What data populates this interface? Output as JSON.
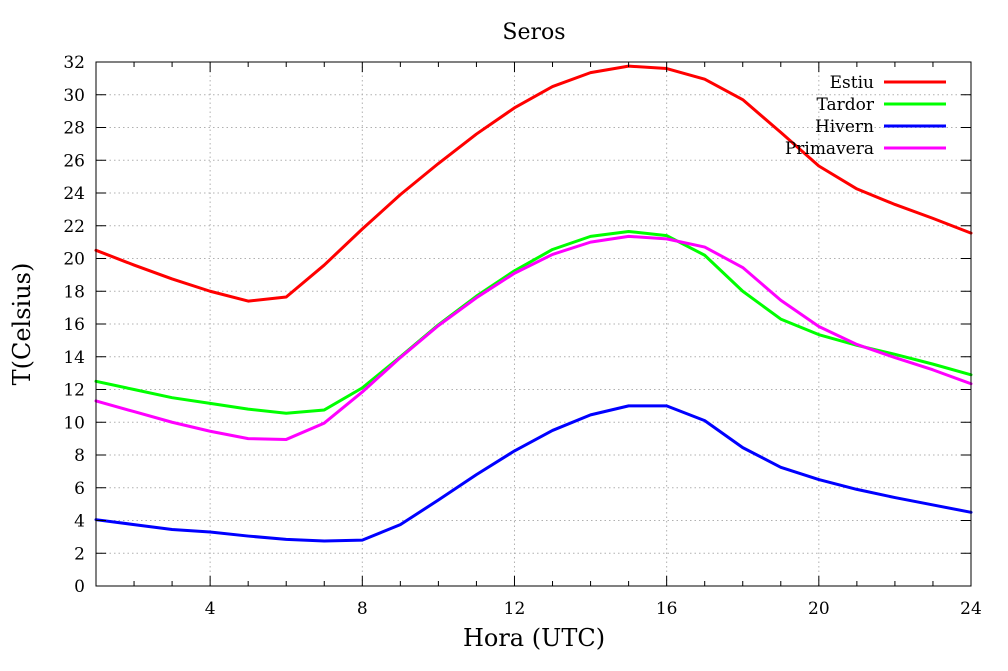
{
  "chart_data": {
    "type": "line",
    "title": "Seros",
    "xlabel": "Hora (UTC)",
    "ylabel": "T(Celsius)",
    "xlim": [
      1,
      24
    ],
    "ylim": [
      0,
      32
    ],
    "xticks": [
      4,
      8,
      12,
      16,
      20,
      24
    ],
    "yticks": [
      0,
      2,
      4,
      6,
      8,
      10,
      12,
      14,
      16,
      18,
      20,
      22,
      24,
      26,
      28,
      30,
      32
    ],
    "grid": true,
    "legend_position": "top-right",
    "x": [
      1,
      2,
      3,
      4,
      5,
      6,
      7,
      8,
      9,
      10,
      11,
      12,
      13,
      14,
      15,
      16,
      17,
      18,
      19,
      20,
      21,
      22,
      23,
      24
    ],
    "series": [
      {
        "name": "Estiu",
        "color": "#ff0000",
        "values": [
          20.5,
          19.6,
          18.75,
          18.0,
          17.4,
          17.65,
          19.6,
          21.8,
          23.9,
          25.8,
          27.6,
          29.2,
          30.5,
          31.35,
          31.75,
          31.6,
          30.95,
          29.7,
          27.7,
          25.65,
          24.25,
          23.3,
          22.45,
          21.55
        ]
      },
      {
        "name": "Tardor",
        "color": "#00ff00",
        "values": [
          12.5,
          12.0,
          11.5,
          11.15,
          10.8,
          10.55,
          10.75,
          12.1,
          14.0,
          15.95,
          17.7,
          19.25,
          20.55,
          21.35,
          21.65,
          21.4,
          20.2,
          18.0,
          16.3,
          15.35,
          14.7,
          14.15,
          13.55,
          12.9
        ]
      },
      {
        "name": "Hivern",
        "color": "#0000ff",
        "values": [
          4.05,
          3.75,
          3.45,
          3.3,
          3.05,
          2.85,
          2.75,
          2.8,
          3.75,
          5.25,
          6.8,
          8.25,
          9.5,
          10.45,
          11.0,
          11.0,
          10.1,
          8.45,
          7.25,
          6.5,
          5.9,
          5.4,
          4.95,
          4.5
        ]
      },
      {
        "name": "Primavera",
        "color": "#ff00ff",
        "values": [
          11.3,
          10.65,
          10.0,
          9.45,
          9.0,
          8.95,
          9.95,
          11.85,
          13.95,
          15.9,
          17.6,
          19.1,
          20.25,
          21.0,
          21.35,
          21.2,
          20.7,
          19.45,
          17.45,
          15.85,
          14.75,
          13.95,
          13.2,
          12.35
        ]
      }
    ]
  }
}
